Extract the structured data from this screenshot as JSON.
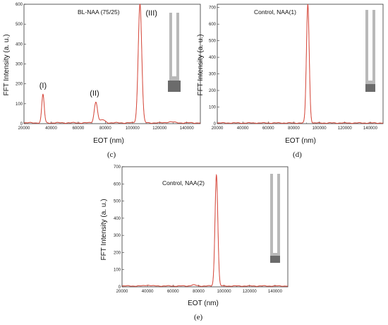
{
  "colors": {
    "line": "#d9473f",
    "trace": "#9aa24a",
    "axis": "#333333",
    "tube_light": "#b9b9b9",
    "tube_dark": "#6b6b6b"
  },
  "chart_data": [
    {
      "type": "line",
      "panel_label": "(c)",
      "annotation": "BL-NAA (75/25)",
      "xlabel": "EOT (nm)",
      "ylabel": "FFT Intensity (a. u.)",
      "xlim": [
        20000,
        150000
      ],
      "ylim": [
        0,
        600
      ],
      "x_ticks": [
        20000,
        40000,
        60000,
        80000,
        100000,
        120000,
        140000
      ],
      "y_ticks": [
        0,
        100,
        200,
        300,
        400,
        500,
        600
      ],
      "peak_labels": [
        {
          "text": "(I)",
          "x": 34000,
          "y": 143
        },
        {
          "text": "(II)",
          "x": 72000,
          "y": 105
        },
        {
          "text": "(III)",
          "x": 105000,
          "y": 600
        }
      ],
      "peaks": [
        {
          "center": 34000,
          "height": 143,
          "width": 900
        },
        {
          "center": 73000,
          "height": 105,
          "width": 1200
        },
        {
          "center": 105500,
          "height": 600,
          "width": 1300
        }
      ],
      "small_bumps": [
        {
          "center": 78000,
          "height": 15,
          "width": 1800
        },
        {
          "center": 128000,
          "height": 5,
          "width": 2500
        }
      ],
      "baseline": 4,
      "icon": "single-cap"
    },
    {
      "type": "line",
      "panel_label": "(d)",
      "annotation": "Control, NAA(1)",
      "xlabel": "EOT (nm)",
      "ylabel": "FFT Intensity (a. u.)",
      "xlim": [
        20000,
        150000
      ],
      "ylim": [
        0,
        720
      ],
      "x_ticks": [
        20000,
        40000,
        60000,
        80000,
        100000,
        120000,
        140000
      ],
      "y_ticks": [
        0,
        100,
        200,
        300,
        400,
        500,
        600,
        700
      ],
      "peak_labels": [],
      "peaks": [
        {
          "center": 91000,
          "height": 715,
          "width": 1100
        }
      ],
      "small_bumps": [],
      "baseline": 4,
      "icon": "single-tube"
    },
    {
      "type": "line",
      "panel_label": "(e)",
      "annotation": "Control, NAA(2)",
      "xlabel": "EOT (nm)",
      "ylabel": "FFT Intensity (a. u.)",
      "xlim": [
        20000,
        150000
      ],
      "ylim": [
        0,
        700
      ],
      "x_ticks": [
        20000,
        40000,
        60000,
        80000,
        100000,
        120000,
        140000
      ],
      "y_ticks": [
        0,
        100,
        200,
        300,
        400,
        500,
        600,
        700
      ],
      "peak_labels": [],
      "peaks": [
        {
          "center": 94000,
          "height": 650,
          "width": 1100
        }
      ],
      "small_bumps": [
        {
          "center": 40000,
          "height": 5,
          "width": 2000
        },
        {
          "center": 76000,
          "height": 6,
          "width": 2000
        }
      ],
      "baseline": 5,
      "icon": "double-tube"
    }
  ]
}
